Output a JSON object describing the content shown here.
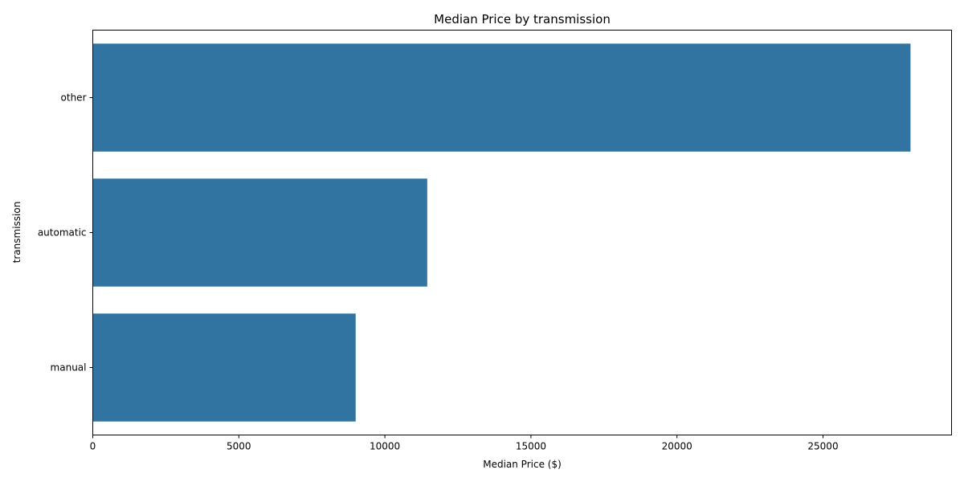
{
  "chart_data": {
    "type": "bar",
    "orientation": "horizontal",
    "title": "Median Price by transmission",
    "xlabel": "Median Price ($)",
    "ylabel": "transmission",
    "categories": [
      "other",
      "automatic",
      "manual"
    ],
    "values": [
      27995,
      11450,
      9000
    ],
    "xlim": [
      0,
      29400
    ],
    "xticks": [
      0,
      5000,
      10000,
      15000,
      20000,
      25000
    ],
    "bar_color": "#3274a1",
    "grid": false,
    "legend": "none"
  }
}
